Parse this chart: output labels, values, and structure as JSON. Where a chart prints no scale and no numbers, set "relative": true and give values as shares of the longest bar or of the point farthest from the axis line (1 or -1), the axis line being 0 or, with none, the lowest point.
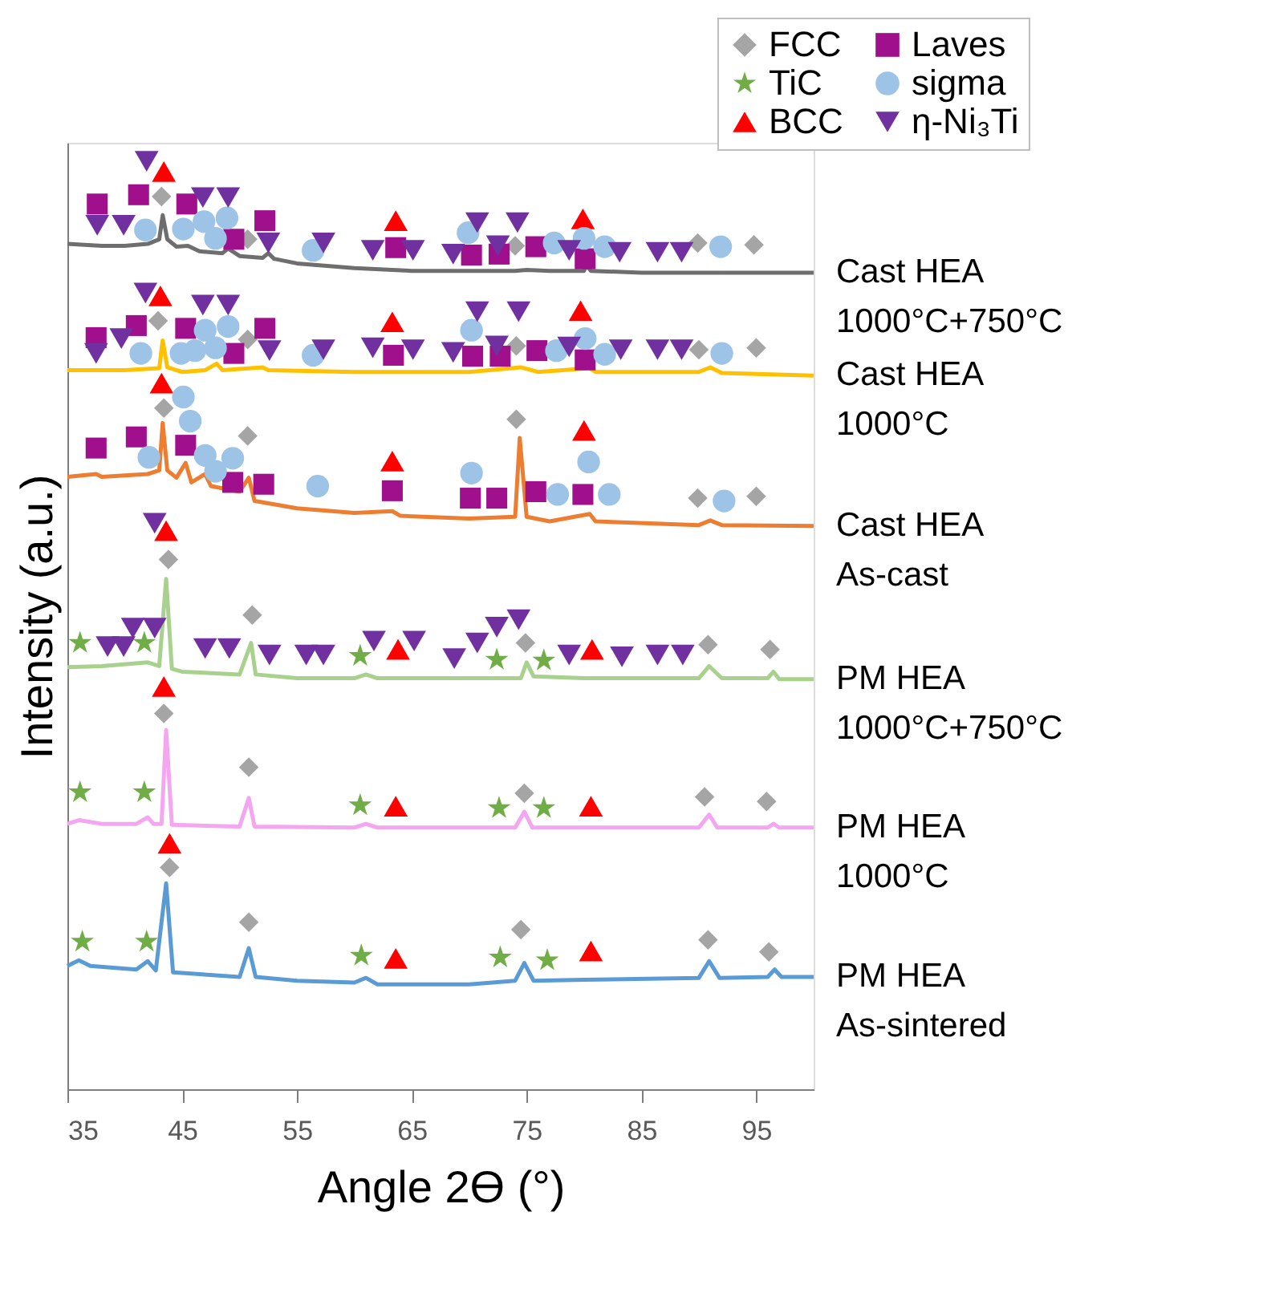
{
  "chart_data": {
    "type": "line",
    "relative": true,
    "xlabel": "Angle 2Ө (°)",
    "ylabel": "Intensity (a.u.)",
    "xlim": [
      35,
      100
    ],
    "xticks": [
      35,
      45,
      55,
      65,
      75,
      85,
      95
    ],
    "grid": false,
    "legend": "top right",
    "series": [
      {
        "name": "Cast HEA\n1000°C+750°C",
        "color": "#6e6e6e",
        "x": [
          35,
          38,
          40,
          42,
          43,
          43.3,
          43.7,
          44.5,
          45.5,
          46.5,
          48.5,
          49,
          50,
          52,
          52.5,
          53,
          55,
          60,
          65,
          70,
          74,
          75,
          77,
          80,
          80.2,
          80.6,
          85,
          90,
          95,
          100
        ],
        "values": [
          0.911,
          0.909,
          0.909,
          0.911,
          0.916,
          0.942,
          0.916,
          0.908,
          0.909,
          0.903,
          0.901,
          0.906,
          0.898,
          0.896,
          0.901,
          0.895,
          0.89,
          0.885,
          0.882,
          0.882,
          0.882,
          0.883,
          0.882,
          0.882,
          0.888,
          0.882,
          0.88,
          0.88,
          0.88,
          0.88
        ]
      },
      {
        "name": "Cast HEA\n1000°C",
        "color": "#ffc000",
        "x": [
          35,
          40,
          43,
          43.3,
          43.7,
          45,
          47,
          48,
          48.5,
          51,
          52,
          52.5,
          60,
          70,
          74.5,
          76,
          80.5,
          81,
          90,
          91,
          92,
          100
        ],
        "values": [
          0.775,
          0.775,
          0.777,
          0.807,
          0.778,
          0.773,
          0.775,
          0.782,
          0.775,
          0.777,
          0.778,
          0.775,
          0.773,
          0.773,
          0.778,
          0.773,
          0.777,
          0.773,
          0.773,
          0.778,
          0.772,
          0.769
        ]
      },
      {
        "name": "Cast HEA\nAs-cast",
        "color": "#ed7d31",
        "x": [
          35,
          37.5,
          38,
          42,
          43,
          43.3,
          43.7,
          44.5,
          45.3,
          45.8,
          47,
          47.5,
          50,
          50.8,
          51.3,
          55,
          60,
          63.3,
          64,
          70,
          74,
          74.4,
          75,
          77,
          80.5,
          81,
          90,
          91,
          92,
          100
        ],
        "values": [
          0.66,
          0.663,
          0.66,
          0.663,
          0.667,
          0.718,
          0.667,
          0.659,
          0.675,
          0.654,
          0.663,
          0.65,
          0.644,
          0.659,
          0.634,
          0.626,
          0.621,
          0.623,
          0.618,
          0.615,
          0.617,
          0.702,
          0.617,
          0.612,
          0.62,
          0.612,
          0.608,
          0.613,
          0.608,
          0.607
        ]
      },
      {
        "name": "PM HEA\n1000°C+750°C",
        "color": "#a9d18e",
        "x": [
          35,
          38,
          42,
          43,
          43.6,
          44.1,
          45,
          50,
          51,
          51.4,
          55,
          60,
          61,
          62,
          70,
          74.5,
          75,
          75.6,
          80,
          90,
          90.9,
          92,
          96,
          96.5,
          97,
          100
        ],
        "values": [
          0.455,
          0.456,
          0.46,
          0.456,
          0.55,
          0.453,
          0.45,
          0.447,
          0.481,
          0.447,
          0.443,
          0.443,
          0.447,
          0.443,
          0.443,
          0.443,
          0.46,
          0.445,
          0.443,
          0.443,
          0.456,
          0.443,
          0.443,
          0.45,
          0.442,
          0.442
        ]
      },
      {
        "name": "PM HEA\n1000°C",
        "color": "#f4a6f0",
        "x": [
          35,
          36,
          38,
          41,
          42,
          42.5,
          43.2,
          43.6,
          44.1,
          50,
          50.8,
          51.3,
          60,
          61,
          62,
          74,
          74.8,
          75.5,
          90,
          90.9,
          91.6,
          96,
          96.5,
          97,
          100
        ],
        "values": [
          0.286,
          0.29,
          0.286,
          0.286,
          0.293,
          0.286,
          0.286,
          0.387,
          0.285,
          0.283,
          0.314,
          0.283,
          0.282,
          0.286,
          0.282,
          0.282,
          0.299,
          0.282,
          0.282,
          0.296,
          0.282,
          0.282,
          0.286,
          0.282,
          0.282
        ]
      },
      {
        "name": "PM HEA\nAs-sintered",
        "color": "#5b9bd5",
        "x": [
          35,
          36,
          37,
          41,
          42,
          42.7,
          43.6,
          44.2,
          50,
          50.8,
          51.4,
          55,
          60,
          61,
          62,
          70,
          74,
          74.8,
          75.6,
          80,
          90,
          90.9,
          91.8,
          96,
          96.6,
          97.2,
          100
        ],
        "values": [
          0.133,
          0.139,
          0.133,
          0.129,
          0.138,
          0.128,
          0.222,
          0.126,
          0.121,
          0.152,
          0.121,
          0.117,
          0.115,
          0.12,
          0.113,
          0.113,
          0.117,
          0.136,
          0.117,
          0.118,
          0.12,
          0.138,
          0.12,
          0.121,
          0.129,
          0.121,
          0.121
        ]
      },
      {
        "type": "scatter",
        "name": "FCC",
        "color": "#a5a5a5",
        "marker": "diamond",
        "x": [
          43.2,
          50.7,
          74.0,
          89.9,
          94.8,
          42.9,
          50.7,
          74.1,
          90.0,
          95.0,
          43.4,
          50.7,
          74.1,
          89.9,
          95.0,
          43.8,
          51.1,
          74.9,
          90.8,
          96.2,
          43.4,
          50.8,
          74.8,
          90.5,
          95.9,
          43.9,
          50.8,
          74.5,
          90.8,
          96.1
        ],
        "values": [
          0.962,
          0.916,
          0.909,
          0.912,
          0.91,
          0.828,
          0.808,
          0.801,
          0.797,
          0.799,
          0.734,
          0.704,
          0.722,
          0.637,
          0.639,
          0.571,
          0.511,
          0.481,
          0.479,
          0.474,
          0.405,
          0.347,
          0.319,
          0.315,
          0.31,
          0.239,
          0.18,
          0.172,
          0.161,
          0.148
        ]
      },
      {
        "type": "scatter",
        "name": "TiC",
        "color": "#70ad47",
        "marker": "star",
        "x": [
          36.1,
          41.7,
          60.5,
          72.4,
          76.5,
          36.1,
          41.7,
          60.5,
          72.6,
          76.5,
          36.3,
          41.9,
          60.6,
          72.7,
          76.8
        ],
        "values": [
          0.481,
          0.481,
          0.467,
          0.463,
          0.462,
          0.32,
          0.32,
          0.306,
          0.303,
          0.303,
          0.159,
          0.159,
          0.144,
          0.142,
          0.139
        ]
      },
      {
        "type": "scatter",
        "name": "BCC",
        "color": "#ff0000",
        "marker": "triangle",
        "x": [
          43.4,
          63.6,
          79.9,
          43.1,
          63.3,
          79.7,
          43.2,
          63.3,
          80.0,
          43.6,
          63.8,
          80.7,
          43.4,
          63.6,
          80.6,
          43.9,
          63.6,
          80.6
        ],
        "values": [
          0.989,
          0.936,
          0.938,
          0.855,
          0.827,
          0.839,
          0.761,
          0.677,
          0.71,
          0.602,
          0.474,
          0.474,
          0.434,
          0.305,
          0.305,
          0.265,
          0.141,
          0.149
        ]
      },
      {
        "type": "scatter",
        "name": "Laves",
        "color": "#a0108c",
        "marker": "square",
        "x": [
          37.6,
          41.2,
          45.4,
          49.5,
          52.2,
          63.6,
          70.2,
          72.6,
          75.8,
          80.1,
          37.5,
          41.0,
          45.3,
          49.5,
          52.2,
          63.4,
          70.3,
          72.7,
          75.9,
          80.1,
          37.5,
          41.0,
          45.3,
          49.4,
          52.1,
          63.3,
          70.1,
          72.4,
          75.8,
          79.9
        ],
        "values": [
          0.954,
          0.964,
          0.954,
          0.916,
          0.936,
          0.907,
          0.899,
          0.9,
          0.908,
          0.895,
          0.81,
          0.823,
          0.82,
          0.793,
          0.82,
          0.791,
          0.79,
          0.79,
          0.796,
          0.786,
          0.691,
          0.703,
          0.694,
          0.654,
          0.652,
          0.645,
          0.637,
          0.637,
          0.644,
          0.641
        ]
      },
      {
        "type": "scatter",
        "name": "sigma",
        "color": "#9dc3e6",
        "marker": "circle",
        "x": [
          41.8,
          45.1,
          46.9,
          47.9,
          48.9,
          56.4,
          69.9,
          77.4,
          80.0,
          81.8,
          91.9,
          41.4,
          44.9,
          46.1,
          47.0,
          47.9,
          49.0,
          56.4,
          70.2,
          77.6,
          80.1,
          81.8,
          92.0,
          42.1,
          45.1,
          45.7,
          47.0,
          47.9,
          49.4,
          56.8,
          70.2,
          77.7,
          80.4,
          82.2,
          92.2
        ],
        "values": [
          0.926,
          0.927,
          0.935,
          0.917,
          0.939,
          0.904,
          0.923,
          0.912,
          0.917,
          0.908,
          0.908,
          0.793,
          0.793,
          0.796,
          0.818,
          0.799,
          0.822,
          0.791,
          0.818,
          0.796,
          0.809,
          0.792,
          0.793,
          0.681,
          0.746,
          0.72,
          0.683,
          0.666,
          0.68,
          0.65,
          0.664,
          0.641,
          0.676,
          0.641,
          0.634
        ]
      },
      {
        "type": "scatter",
        "name": "η-Ni₃Ti",
        "color": "#7030a0",
        "marker": "triangle-down",
        "x": [
          41.9,
          37.6,
          39.9,
          46.8,
          49.0,
          52.5,
          57.3,
          61.6,
          65.1,
          68.6,
          70.7,
          72.5,
          74.2,
          78.7,
          83.1,
          86.4,
          88.5,
          41.8,
          37.5,
          39.7,
          46.8,
          49.0,
          52.6,
          57.3,
          61.6,
          65.1,
          68.6,
          70.7,
          72.4,
          74.3,
          78.7,
          83.2,
          86.4,
          88.5,
          42.6,
          38.5,
          39.9,
          40.7,
          42.6,
          47.0,
          49.1,
          52.6,
          55.8,
          57.3,
          61.7,
          65.2,
          68.7,
          70.7,
          72.4,
          74.3,
          78.7,
          83.3,
          86.4,
          88.6
        ],
        "values": [
          1.0,
          0.931,
          0.931,
          0.961,
          0.961,
          0.912,
          0.912,
          0.904,
          0.904,
          0.9,
          0.934,
          0.909,
          0.934,
          0.904,
          0.902,
          0.902,
          0.902,
          0.858,
          0.793,
          0.809,
          0.845,
          0.845,
          0.796,
          0.797,
          0.799,
          0.797,
          0.794,
          0.838,
          0.801,
          0.838,
          0.8,
          0.797,
          0.797,
          0.797,
          0.61,
          0.477,
          0.477,
          0.497,
          0.497,
          0.475,
          0.475,
          0.468,
          0.468,
          0.468,
          0.483,
          0.483,
          0.464,
          0.481,
          0.498,
          0.506,
          0.468,
          0.466,
          0.468,
          0.468
        ]
      }
    ]
  }
}
